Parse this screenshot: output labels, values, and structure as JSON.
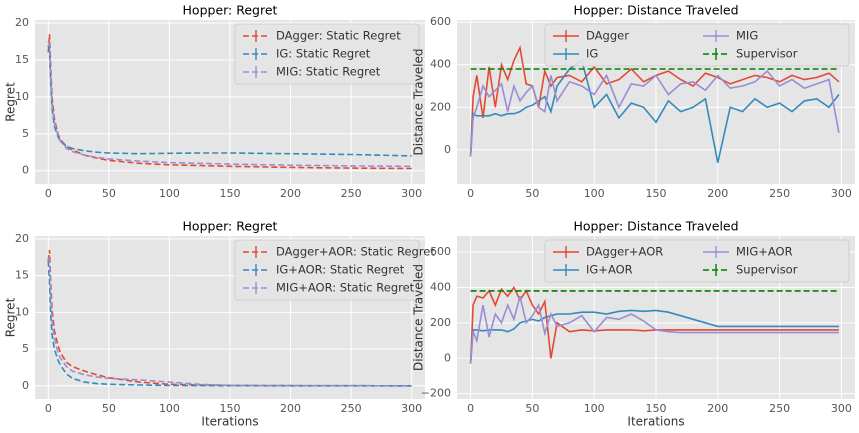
{
  "chart_data": [
    {
      "type": "line",
      "title": "Hopper: Regret",
      "y_label": "Regret",
      "x": [
        0,
        1,
        2,
        3,
        5,
        8,
        10,
        15,
        20,
        30,
        40,
        50,
        75,
        100,
        125,
        150,
        200,
        250,
        300
      ],
      "xlim": [
        -11,
        311
      ],
      "xticks": [
        0,
        50,
        100,
        150,
        200,
        250,
        300
      ],
      "ylim": [
        -1.8,
        20.4
      ],
      "yticks": [
        0,
        5,
        10,
        15,
        20
      ],
      "grid": true,
      "legend": "upper right",
      "series": [
        {
          "name": "DAgger: Static Regret",
          "color": "#e24a33",
          "dash": true,
          "values": [
            16,
            18.5,
            14,
            10,
            7,
            5,
            4.2,
            3.3,
            2.8,
            2.1,
            1.7,
            1.4,
            1.0,
            0.8,
            0.7,
            0.6,
            0.45,
            0.35,
            0.3
          ]
        },
        {
          "name": "IG: Static Regret",
          "color": "#348abd",
          "dash": true,
          "values": [
            17,
            16,
            12,
            8.5,
            6,
            4.6,
            4,
            3.3,
            3,
            2.7,
            2.5,
            2.4,
            2.3,
            2.35,
            2.4,
            2.4,
            2.3,
            2.2,
            2.0
          ]
        },
        {
          "name": "MIG: Static Regret",
          "color": "#988ed5",
          "dash": true,
          "values": [
            17.5,
            17,
            12.5,
            9,
            6.5,
            4.8,
            4,
            3,
            2.6,
            2.1,
            1.8,
            1.6,
            1.3,
            1.1,
            1,
            0.9,
            0.75,
            0.65,
            0.6
          ]
        }
      ]
    },
    {
      "type": "line",
      "title": "Hopper: Distance Traveled",
      "y_label": "Distance Traveled",
      "x": [
        0,
        2,
        5,
        10,
        15,
        20,
        25,
        30,
        35,
        40,
        45,
        50,
        55,
        60,
        65,
        70,
        80,
        90,
        100,
        110,
        120,
        130,
        140,
        150,
        160,
        170,
        180,
        190,
        200,
        210,
        220,
        230,
        240,
        250,
        260,
        270,
        280,
        290,
        298
      ],
      "xlim": [
        -11,
        311
      ],
      "xticks": [
        0,
        50,
        100,
        150,
        200,
        250,
        300
      ],
      "ylim": [
        -160,
        610
      ],
      "yticks": [
        0,
        200,
        400,
        600
      ],
      "grid": true,
      "legend": "upper right",
      "series": [
        {
          "name": "DAgger",
          "color": "#e24a33",
          "dash": false,
          "values": [
            -30,
            250,
            350,
            150,
            390,
            200,
            400,
            330,
            420,
            480,
            310,
            300,
            200,
            370,
            300,
            340,
            350,
            320,
            390,
            310,
            330,
            380,
            320,
            350,
            370,
            330,
            300,
            360,
            340,
            310,
            330,
            350,
            340,
            320,
            350,
            330,
            340,
            360,
            320
          ]
        },
        {
          "name": "IG",
          "color": "#348abd",
          "dash": false,
          "values": [
            -30,
            170,
            160,
            160,
            160,
            170,
            160,
            170,
            170,
            180,
            200,
            210,
            230,
            250,
            180,
            300,
            380,
            420,
            200,
            260,
            150,
            220,
            200,
            130,
            230,
            180,
            200,
            240,
            -60,
            200,
            180,
            240,
            200,
            220,
            180,
            230,
            240,
            200,
            260
          ]
        },
        {
          "name": "MIG",
          "color": "#988ed5",
          "dash": false,
          "values": [
            -30,
            150,
            200,
            300,
            250,
            280,
            310,
            180,
            300,
            230,
            270,
            300,
            200,
            180,
            350,
            230,
            320,
            300,
            260,
            350,
            200,
            310,
            300,
            350,
            260,
            310,
            320,
            280,
            350,
            290,
            300,
            320,
            370,
            300,
            330,
            290,
            310,
            330,
            80
          ]
        },
        {
          "name": "Supervisor",
          "color": "#008000",
          "dash": true,
          "values": [
            380,
            380,
            380,
            380,
            380,
            380,
            380,
            380,
            380,
            380,
            380,
            380,
            380,
            380,
            380,
            380,
            380,
            380,
            380,
            380,
            380,
            380,
            380,
            380,
            380,
            380,
            380,
            380,
            380,
            380,
            380,
            380,
            380,
            380,
            380,
            380,
            380,
            380,
            380
          ]
        }
      ]
    },
    {
      "type": "line",
      "title": "Hopper: Regret",
      "y_label": "Regret",
      "x_label": "Iterations",
      "x": [
        0,
        1,
        2,
        3,
        5,
        8,
        10,
        15,
        20,
        30,
        40,
        50,
        75,
        100,
        125,
        150,
        200,
        250,
        300
      ],
      "xlim": [
        -11,
        311
      ],
      "xticks": [
        0,
        50,
        100,
        150,
        200,
        250,
        300
      ],
      "ylim": [
        -1.8,
        20.4
      ],
      "yticks": [
        0,
        5,
        10,
        15,
        20
      ],
      "grid": true,
      "legend": "upper right",
      "series": [
        {
          "name": "DAgger+AOR: Static Regret",
          "color": "#e24a33",
          "dash": true,
          "values": [
            17,
            18.5,
            14,
            10.5,
            7.5,
            5.5,
            4.5,
            3.2,
            2.6,
            2,
            1.5,
            1.1,
            0.5,
            0.2,
            0.1,
            0.05,
            0.02,
            0.01,
            0
          ]
        },
        {
          "name": "IG+AOR: Static Regret",
          "color": "#348abd",
          "dash": true,
          "values": [
            17,
            14,
            10,
            7,
            5,
            3.5,
            2.8,
            1.6,
            1,
            0.5,
            0.3,
            0.2,
            0.1,
            0.05,
            0.02,
            0.01,
            0,
            0,
            0
          ]
        },
        {
          "name": "MIG+AOR: Static Regret",
          "color": "#988ed5",
          "dash": true,
          "values": [
            17.5,
            17,
            12.5,
            9,
            6.5,
            4.5,
            3.8,
            2.6,
            2,
            1.5,
            1.2,
            1,
            0.8,
            0.5,
            0.2,
            0.05,
            0.02,
            0.01,
            0
          ]
        }
      ]
    },
    {
      "type": "line",
      "title": "Hopper: Distance Traveled",
      "y_label": "Distance Traveled",
      "x_label": "Iterations",
      "x": [
        0,
        2,
        5,
        10,
        15,
        20,
        25,
        30,
        35,
        40,
        45,
        50,
        55,
        60,
        65,
        70,
        80,
        90,
        100,
        110,
        120,
        130,
        140,
        150,
        160,
        170,
        180,
        190,
        200,
        210,
        220,
        230,
        240,
        250,
        260,
        270,
        280,
        290,
        298
      ],
      "xlim": [
        -11,
        311
      ],
      "xticks": [
        0,
        50,
        100,
        150,
        200,
        250,
        300
      ],
      "ylim": [
        -230,
        690
      ],
      "yticks": [
        {
          "value": -200,
          "label": "−200"
        },
        0,
        200,
        400,
        600
      ],
      "grid": true,
      "legend": "upper right",
      "series": [
        {
          "name": "DAgger+AOR",
          "color": "#e24a33",
          "dash": false,
          "values": [
            -30,
            300,
            350,
            340,
            380,
            300,
            390,
            350,
            400,
            330,
            380,
            300,
            250,
            320,
            0,
            200,
            150,
            160,
            155,
            160,
            160,
            160,
            155,
            160,
            160,
            160,
            160,
            160,
            160,
            160,
            160,
            160,
            160,
            160,
            160,
            160,
            160,
            160,
            160
          ]
        },
        {
          "name": "IG+AOR",
          "color": "#348abd",
          "dash": false,
          "values": [
            -30,
            160,
            160,
            155,
            160,
            160,
            160,
            150,
            165,
            200,
            210,
            220,
            210,
            230,
            240,
            250,
            250,
            260,
            260,
            250,
            265,
            270,
            265,
            270,
            260,
            240,
            220,
            200,
            180,
            180,
            180,
            180,
            180,
            180,
            180,
            180,
            180,
            180,
            180
          ]
        },
        {
          "name": "MIG+AOR",
          "color": "#988ed5",
          "dash": false,
          "values": [
            -30,
            150,
            100,
            300,
            120,
            250,
            200,
            300,
            220,
            350,
            200,
            240,
            300,
            140,
            250,
            180,
            200,
            240,
            150,
            230,
            220,
            250,
            210,
            160,
            150,
            145,
            145,
            145,
            145,
            145,
            145,
            145,
            145,
            145,
            145,
            145,
            145,
            145,
            145
          ]
        },
        {
          "name": "Supervisor",
          "color": "#008000",
          "dash": true,
          "values": [
            380,
            380,
            380,
            380,
            380,
            380,
            380,
            380,
            380,
            380,
            380,
            380,
            380,
            380,
            380,
            380,
            380,
            380,
            380,
            380,
            380,
            380,
            380,
            380,
            380,
            380,
            380,
            380,
            380,
            380,
            380,
            380,
            380,
            380,
            380,
            380,
            380,
            380,
            380
          ]
        }
      ]
    }
  ]
}
